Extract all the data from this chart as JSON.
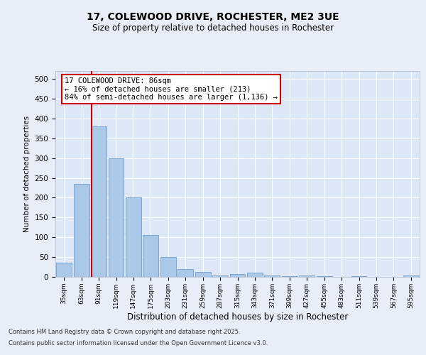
{
  "title": "17, COLEWOOD DRIVE, ROCHESTER, ME2 3UE",
  "subtitle": "Size of property relative to detached houses in Rochester",
  "xlabel": "Distribution of detached houses by size in Rochester",
  "ylabel": "Number of detached properties",
  "categories": [
    "35sqm",
    "63sqm",
    "91sqm",
    "119sqm",
    "147sqm",
    "175sqm",
    "203sqm",
    "231sqm",
    "259sqm",
    "287sqm",
    "315sqm",
    "343sqm",
    "371sqm",
    "399sqm",
    "427sqm",
    "455sqm",
    "483sqm",
    "511sqm",
    "539sqm",
    "567sqm",
    "595sqm"
  ],
  "values": [
    35,
    235,
    380,
    300,
    200,
    105,
    50,
    20,
    12,
    4,
    8,
    10,
    3,
    2,
    3,
    2,
    0,
    2,
    0,
    0,
    3
  ],
  "bar_color": "#aac8e8",
  "bar_edge_color": "#6090c0",
  "vline_color": "#cc0000",
  "annotation_text": "17 COLEWOOD DRIVE: 86sqm\n← 16% of detached houses are smaller (213)\n84% of semi-detached houses are larger (1,136) →",
  "annotation_box_color": "#ffffff",
  "annotation_box_edge": "#cc0000",
  "background_color": "#e8eef8",
  "plot_bg_color": "#dce8f8",
  "grid_color": "#ffffff",
  "footer_line1": "Contains HM Land Registry data © Crown copyright and database right 2025.",
  "footer_line2": "Contains public sector information licensed under the Open Government Licence v3.0.",
  "ylim": [
    0,
    520
  ],
  "yticks": [
    0,
    50,
    100,
    150,
    200,
    250,
    300,
    350,
    400,
    450,
    500
  ]
}
